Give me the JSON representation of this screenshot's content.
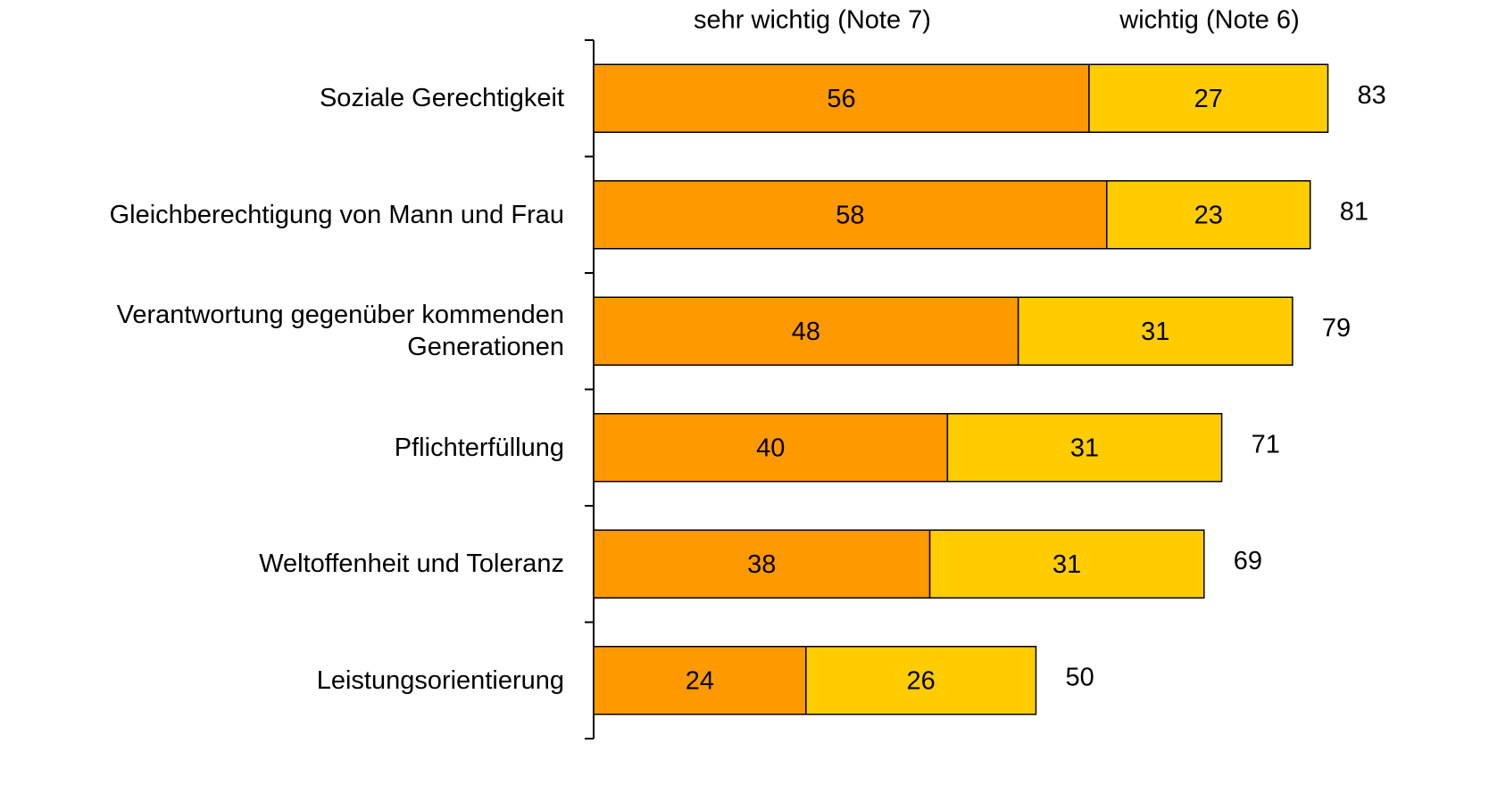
{
  "chart_data": {
    "type": "stacked-bar-horizontal",
    "categories": [
      "Soziale Gerechtigkeit",
      "Gleichberechtigung von Mann und Frau",
      "Verantwortung gegenüber kommenden Generationen",
      "Pflichterfüllung",
      "Weltoffenheit und Toleranz",
      "Leistungsorientierung"
    ],
    "series": [
      {
        "name": "sehr wichtig (Note 7)",
        "color": "#ff9900",
        "values": [
          56,
          58,
          48,
          40,
          38,
          24
        ]
      },
      {
        "name": "wichtig (Note 6)",
        "color": "#ffcc00",
        "values": [
          27,
          23,
          31,
          31,
          31,
          26
        ]
      }
    ],
    "totals": [
      83,
      81,
      79,
      71,
      69,
      50
    ]
  }
}
